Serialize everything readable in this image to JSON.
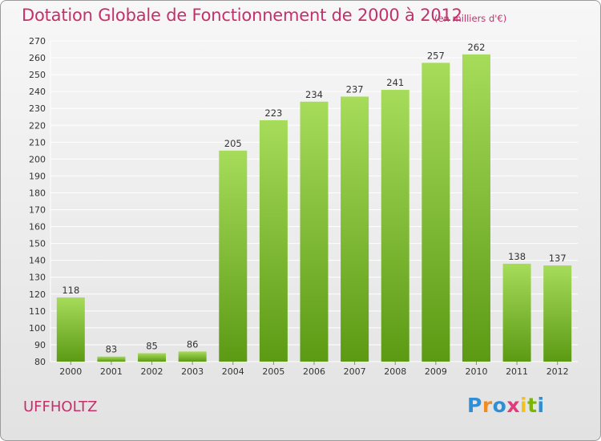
{
  "title": "Dotation Globale de Fonctionnement de 2000 à 2012",
  "subtitle": "(en milliers d'€)",
  "commune": "UFFHOLTZ",
  "logo": {
    "letters": [
      "P",
      "r",
      "o",
      "x",
      "i",
      "t",
      "i"
    ],
    "colors": [
      "#2f8fd6",
      "#f28c1e",
      "#2f8fd6",
      "#e23a7a",
      "#f2c21e",
      "#7ab800",
      "#2f8fd6"
    ]
  },
  "colors": {
    "title": "#c4306a",
    "bar_top": "#a6dc5a",
    "bar_bottom": "#5c9a14",
    "grid": "#ffffff",
    "axis_text": "#333333"
  },
  "chart_data": {
    "type": "bar",
    "categories": [
      "2000",
      "2001",
      "2002",
      "2003",
      "2004",
      "2005",
      "2006",
      "2007",
      "2008",
      "2009",
      "2010",
      "2011",
      "2012"
    ],
    "values": [
      118,
      83,
      85,
      86,
      205,
      223,
      234,
      237,
      241,
      257,
      262,
      138,
      137
    ],
    "ylim": [
      80,
      270
    ],
    "ytick_step": 10,
    "grid": true
  }
}
